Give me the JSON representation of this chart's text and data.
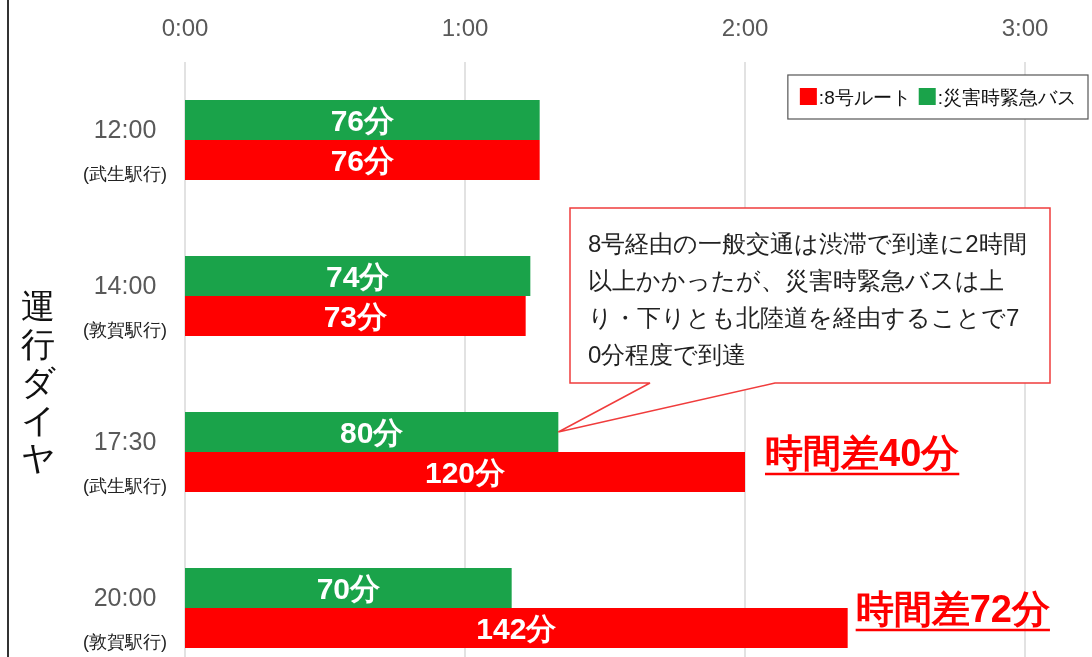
{
  "chart_data": {
    "type": "bar",
    "orientation": "horizontal",
    "ylabel": "運行ダイヤ",
    "categories": [
      "12:00\n(武生駅行)",
      "14:00\n(敦賀駅行)",
      "17:30\n(武生駅行)",
      "20:00\n(敦賀駅行)"
    ],
    "xlim": [
      0,
      180
    ],
    "xticks": [
      {
        "value": 0,
        "label": "0:00"
      },
      {
        "value": 60,
        "label": "1:00"
      },
      {
        "value": 120,
        "label": "2:00"
      },
      {
        "value": 180,
        "label": "3:00"
      }
    ],
    "grid": "x",
    "legend": "top right",
    "series": [
      {
        "name": ":8号ルート",
        "color": "#ff0000",
        "values": [
          76,
          73,
          120,
          142
        ],
        "value_labels": [
          "76分",
          "73分",
          "120分",
          "142分"
        ]
      },
      {
        "name": ":災害時緊急バス",
        "color": "#1aa34a",
        "values": [
          76,
          74,
          80,
          70
        ],
        "value_labels": [
          "76分",
          "74分",
          "80分",
          "70分"
        ]
      }
    ],
    "annotations": [
      "8号経由の一般交通は渋滞で到達に2時間以上かかったが、災害時緊急バスは上り・下りとも北陸道を経由することで70分程度で到達",
      "時間差40分",
      "時間差72分"
    ]
  }
}
